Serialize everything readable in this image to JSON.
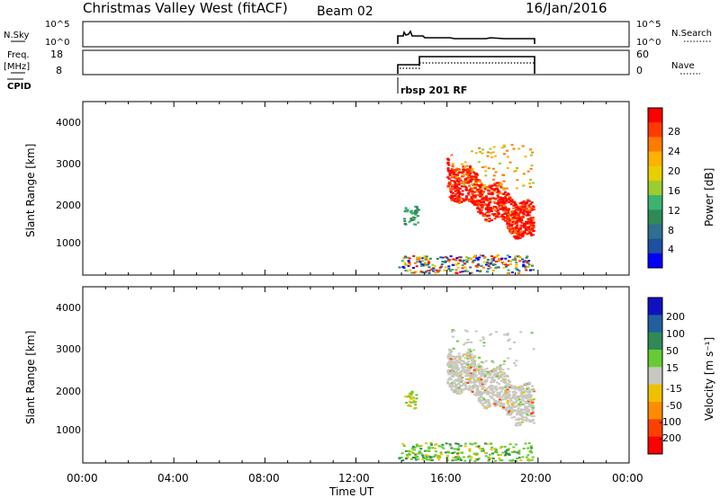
{
  "header": {
    "title": "Christmas Valley West (fitACF)",
    "beam": "Beam 02",
    "date": "16/Jan/2016"
  },
  "noise_panel": {
    "left_label": "N.Sky",
    "right_label": "N.Search",
    "left_ticks": [
      "10^5",
      "10^0"
    ],
    "right_ticks": [
      "10^5",
      "10^0"
    ]
  },
  "freq_panel": {
    "left_label_1": "Freq.",
    "left_label_2": "[MHz]",
    "right_label": "Nave",
    "left_ticks": [
      "18",
      "8"
    ],
    "right_ticks": [
      "60",
      "0"
    ]
  },
  "cpid": {
    "label": "CPID",
    "mode": "rbsp 201 RF"
  },
  "power_panel": {
    "ylabel": "Slant Range [km]",
    "yticks": [
      "4000",
      "3000",
      "2000",
      "1000"
    ],
    "colorbar_label": "Power [dB]",
    "colorbar_ticks": [
      "28",
      "24",
      "20",
      "16",
      "12",
      "8",
      "4"
    ],
    "colorbar_colors": [
      "#ff0000",
      "#ff3a00",
      "#ff7a00",
      "#ffb000",
      "#e8d000",
      "#9acd32",
      "#3cb371",
      "#2e8b57",
      "#2f6f8f",
      "#1f4fa0",
      "#0000ff"
    ]
  },
  "velocity_panel": {
    "ylabel": "Slant Range [km]",
    "yticks": [
      "4000",
      "3000",
      "2000",
      "1000"
    ],
    "colorbar_label": "Velocity [m s⁻¹]",
    "colorbar_ticks": [
      "200",
      "100",
      "50",
      "15",
      "-15",
      "-50",
      "-100",
      "-200"
    ],
    "colorbar_colors": [
      "#1010c0",
      "#2060a0",
      "#2e8b57",
      "#66cc33",
      "#c8c8c0",
      "#f0c000",
      "#ff8c00",
      "#ff4000",
      "#ff0000"
    ]
  },
  "xaxis": {
    "label": "Time UT",
    "ticks": [
      "00:00",
      "04:00",
      "08:00",
      "12:00",
      "16:00",
      "20:00",
      "00:00"
    ]
  }
}
